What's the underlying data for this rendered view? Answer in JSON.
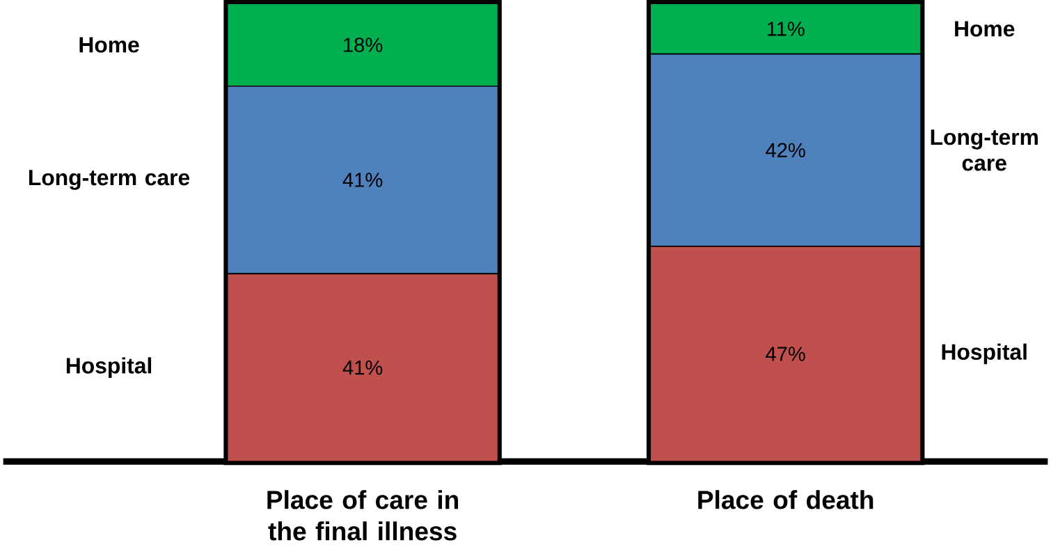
{
  "chart_data": {
    "type": "bar",
    "stacked": true,
    "categories": [
      "Place of care in the final illness",
      "Place of death"
    ],
    "series": [
      {
        "name": "Hospital",
        "color": "#c0504d",
        "values": [
          41,
          47
        ],
        "value_labels": [
          "41%",
          "47%"
        ]
      },
      {
        "name": "Long-term care",
        "color": "#4f81bd",
        "values": [
          41,
          42
        ],
        "value_labels": [
          "41%",
          "42%"
        ]
      },
      {
        "name": "Home",
        "color": "#00b050",
        "values": [
          18,
          11
        ],
        "value_labels": [
          "18%",
          "11%"
        ]
      }
    ]
  }
}
